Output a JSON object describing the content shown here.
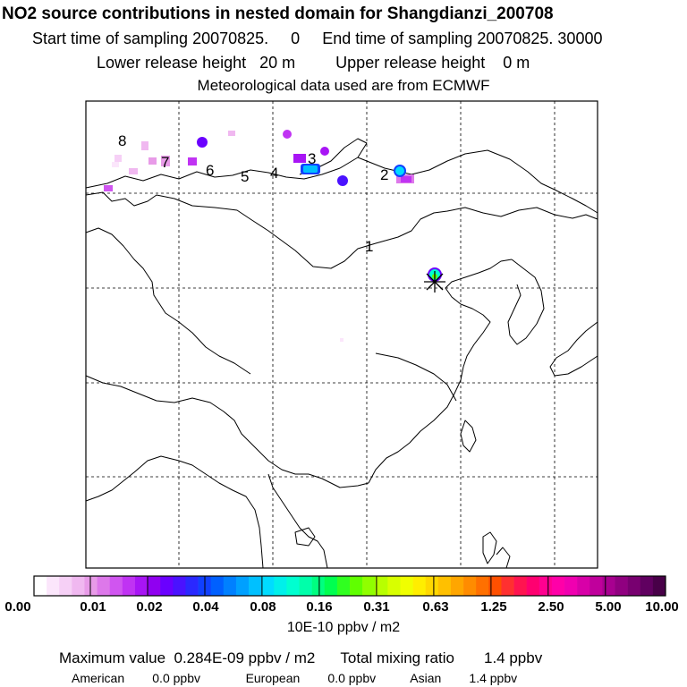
{
  "header": {
    "title": "NO2 source contributions in nested domain for Shangdianzi_200708",
    "start_label": "Start time of sampling",
    "start_value": "20070825.     0",
    "end_label": "End time of sampling",
    "end_value": "20070825. 30000",
    "lower_label": "Lower release height",
    "lower_value": "20 m",
    "upper_label": "Upper release height",
    "upper_value": "0 m",
    "met": "Meteorological data used are from ECMWF"
  },
  "map": {
    "track_labels": [
      "1",
      "2",
      "3",
      "4",
      "5",
      "6",
      "7",
      "8"
    ]
  },
  "colorbar": {
    "ticks": [
      "0.00",
      "0.01",
      "0.02",
      "0.04",
      "0.08",
      "0.16",
      "0.31",
      "0.63",
      "1.25",
      "2.50",
      "5.00",
      "10.00"
    ],
    "colors": [
      "#ffffff",
      "#fbe6fb",
      "#f6d0f6",
      "#f0b8f0",
      "#e89be8",
      "#dd78ea",
      "#d055f0",
      "#c033f3",
      "#a815f5",
      "#9000f0",
      "#6a00ff",
      "#4a12ff",
      "#2a28ff",
      "#1040ff",
      "#0060ff",
      "#0080ff",
      "#00a0ff",
      "#00c0ff",
      "#00dcff",
      "#00f0ea",
      "#00ffd0",
      "#00ffaa",
      "#00ff80",
      "#00ff50",
      "#30ff20",
      "#60ff00",
      "#90ff00",
      "#b8ff00",
      "#d8ff00",
      "#f0ff00",
      "#ffee00",
      "#ffd800",
      "#ffc000",
      "#ffa600",
      "#ff8c00",
      "#ff7000",
      "#ff5000",
      "#ff3030",
      "#ff1450",
      "#ff0070",
      "#ff0090",
      "#ff00a8",
      "#f000b0",
      "#d800a8",
      "#c0009c",
      "#a80090",
      "#900080",
      "#780070",
      "#600060",
      "#480048"
    ],
    "units": "10E-10 ppbv / m2"
  },
  "stats": {
    "max_label": "Maximum value",
    "max_value": "0.284E-09 ppbv / m2",
    "total_label": "Total mixing ratio",
    "total_value": "1.4 ppbv",
    "american_label": "American",
    "american_value": "0.0 ppbv",
    "european_label": "European",
    "european_value": "0.0 ppbv",
    "asian_label": "Asian",
    "asian_value": "1.4 ppbv"
  }
}
